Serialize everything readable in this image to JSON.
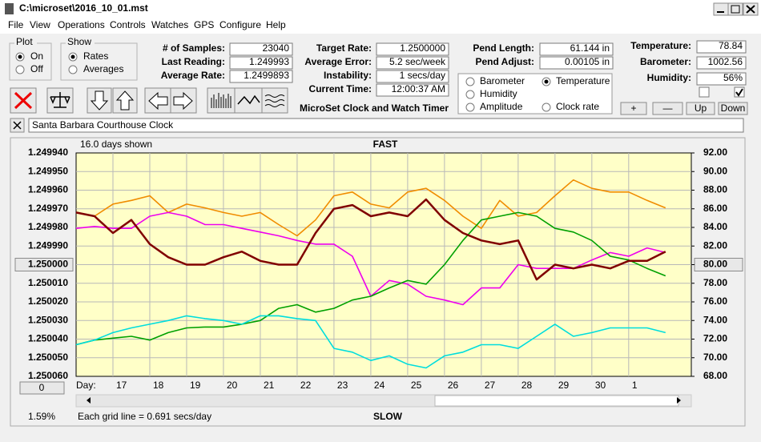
{
  "ui": {
    "title": "C:\\microset\\2016_10_01.mst",
    "menu": [
      "File",
      "View",
      "Operations",
      "Controls",
      "Watches",
      "GPS",
      "Configure",
      "Help"
    ],
    "plot_box": {
      "label": "Plot",
      "options": [
        "On",
        "Off"
      ]
    },
    "show_box": {
      "label": "Show",
      "options": [
        "Rates",
        "Averages"
      ]
    },
    "readouts": [
      {
        "label": "# of Samples:",
        "value": "23040"
      },
      {
        "label": "Last Reading:",
        "value": "1.249993"
      },
      {
        "label": "Average Rate:",
        "value": "1.2499893"
      },
      {
        "label": "Target Rate:",
        "value": "1.2500000"
      },
      {
        "label": "Average Error:",
        "value": "5.2 sec/week"
      },
      {
        "label": "Instability:",
        "value": "1 secs/day"
      },
      {
        "label": "Current Time:",
        "value": "12:00:37 AM"
      },
      {
        "label": "Pend Length:",
        "value": "61.144 in"
      },
      {
        "label": "Pend Adjust:",
        "value": "0.00105 in"
      }
    ],
    "environment": [
      {
        "label": "Temperature:",
        "value": "78.84"
      },
      {
        "label": "Barometer:",
        "value": "1002.56"
      },
      {
        "label": "Humidity:",
        "value": "56%"
      }
    ],
    "clock_rate_option": "Clock rate",
    "app_name": "MicroSet Clock and Watch Timer",
    "buttons": [
      "+",
      "—",
      "Up",
      "Down"
    ],
    "watch_name": "Santa Barbara Courthouse Clock",
    "zoom_button": "0",
    "percent": "1.59%"
  },
  "chart_data": {
    "type": "line",
    "subtitle": "16.0 days shown",
    "top_label": "FAST",
    "bottom_label": "SLOW",
    "x_label": "Day:",
    "footnote": "Each grid line = 0.691 secs/day",
    "grid": true,
    "xlim": [
      0,
      16.7
    ],
    "xticks": [
      {
        "value": 1,
        "label": "17"
      },
      {
        "value": 2,
        "label": "18"
      },
      {
        "value": 3,
        "label": "19"
      },
      {
        "value": 4,
        "label": "20"
      },
      {
        "value": 5,
        "label": "21"
      },
      {
        "value": 6,
        "label": "22"
      },
      {
        "value": 7,
        "label": "23"
      },
      {
        "value": 8,
        "label": "24"
      },
      {
        "value": 9,
        "label": "25"
      },
      {
        "value": 10,
        "label": "26"
      },
      {
        "value": 11,
        "label": "27"
      },
      {
        "value": 12,
        "label": "28"
      },
      {
        "value": 13,
        "label": "29"
      },
      {
        "value": 14,
        "label": "30"
      },
      {
        "value": 15,
        "label": "1"
      }
    ],
    "ylim": [
      1.25006,
      1.24994
    ],
    "yticks": [
      {
        "value": 1.24994,
        "label": "1.249940"
      },
      {
        "value": 1.24995,
        "label": "1.249950"
      },
      {
        "value": 1.24996,
        "label": "1.249960"
      },
      {
        "value": 1.24997,
        "label": "1.249970"
      },
      {
        "value": 1.24998,
        "label": "1.249980"
      },
      {
        "value": 1.24999,
        "label": "1.249990"
      },
      {
        "value": 1.25,
        "label": "1.250000"
      },
      {
        "value": 1.25001,
        "label": "1.250010"
      },
      {
        "value": 1.25002,
        "label": "1.250020"
      },
      {
        "value": 1.25003,
        "label": "1.250030"
      },
      {
        "value": 1.25004,
        "label": "1.250040"
      },
      {
        "value": 1.25005,
        "label": "1.250050"
      },
      {
        "value": 1.25006,
        "label": "1.250060"
      }
    ],
    "y2lim": [
      68,
      92
    ],
    "y2ticks": [
      {
        "value": 92,
        "label": "92.00"
      },
      {
        "value": 90,
        "label": "90.00"
      },
      {
        "value": 88,
        "label": "88.00"
      },
      {
        "value": 86,
        "label": "86.00"
      },
      {
        "value": 84,
        "label": "84.00"
      },
      {
        "value": 82,
        "label": "82.00"
      },
      {
        "value": 80,
        "label": "80.00"
      },
      {
        "value": 78,
        "label": "78.00"
      },
      {
        "value": 76,
        "label": "76.00"
      },
      {
        "value": 74,
        "label": "74.00"
      },
      {
        "value": 72,
        "label": "72.00"
      },
      {
        "value": 70,
        "label": "70.00"
      },
      {
        "value": 68,
        "label": "68.00"
      }
    ],
    "x": [
      0,
      0.5,
      1,
      1.5,
      2,
      2.5,
      3,
      3.5,
      4,
      4.5,
      5,
      5.5,
      6,
      6.5,
      7,
      7.5,
      8,
      8.5,
      9,
      9.5,
      10,
      10.5,
      11,
      11.5,
      12,
      12.5,
      13,
      13.5,
      14,
      14.5,
      15,
      15.5,
      16
    ],
    "series": [
      {
        "color": "#800000",
        "values": [
          1.249972,
          1.249974,
          1.249983,
          1.249976,
          1.249989,
          1.249996,
          1.25,
          1.25,
          1.249996,
          1.249993,
          1.249998,
          1.25,
          1.25,
          1.249983,
          1.24997,
          1.249968,
          1.249974,
          1.249972,
          1.249974,
          1.249965,
          1.249976,
          1.249983,
          1.249987,
          1.249989,
          1.249987,
          1.250008,
          1.25,
          1.250002,
          1.25,
          1.250002,
          1.249998,
          1.249998,
          1.249993
        ]
      },
      {
        "name": "Barometer",
        "color": "#f08c00",
        "axis": "y2",
        "values": [
          85.6,
          85.2,
          86.5,
          86.9,
          87.4,
          85.6,
          86.5,
          86.1,
          85.6,
          85.2,
          85.6,
          84.3,
          83.1,
          84.8,
          87.4,
          87.8,
          86.5,
          86.1,
          87.8,
          88.2,
          86.9,
          85.2,
          83.9,
          86.9,
          85.2,
          85.6,
          87.4,
          89.1,
          88.2,
          87.8,
          87.8,
          86.9,
          86.1
        ]
      },
      {
        "name": "Humidity",
        "color": "#ee00ee",
        "axis": "y2",
        "values": [
          83.9,
          84.1,
          83.9,
          83.9,
          85.2,
          85.6,
          85.2,
          84.3,
          84.3,
          83.9,
          83.5,
          83.1,
          82.6,
          82.2,
          82.2,
          80.9,
          76.6,
          78.3,
          77.9,
          76.6,
          76.2,
          75.7,
          77.5,
          77.5,
          80.0,
          79.6,
          79.6,
          79.6,
          80.5,
          81.3,
          80.9,
          81.8,
          81.3
        ]
      },
      {
        "name": "Temperature",
        "color": "#00a000",
        "axis": "y2",
        "values": [
          71.4,
          71.9,
          72.1,
          72.3,
          71.9,
          72.7,
          73.2,
          73.3,
          73.3,
          73.6,
          74.0,
          75.3,
          75.7,
          74.9,
          75.3,
          76.2,
          76.6,
          77.5,
          78.3,
          77.9,
          80.0,
          82.6,
          84.8,
          85.2,
          85.6,
          85.2,
          83.9,
          83.5,
          82.6,
          80.9,
          80.5,
          79.6,
          78.8
        ]
      },
      {
        "name": "Amplitude",
        "color": "#00dddd",
        "axis": "y2",
        "values": [
          71.4,
          71.9,
          72.7,
          73.2,
          73.6,
          74.0,
          74.5,
          74.2,
          74.0,
          73.6,
          74.5,
          74.5,
          74.2,
          74.0,
          71.0,
          70.6,
          69.7,
          70.2,
          69.3,
          68.9,
          70.2,
          70.6,
          71.4,
          71.4,
          71.0,
          72.3,
          73.6,
          72.3,
          72.7,
          73.2,
          73.2,
          73.2,
          72.7
        ]
      }
    ]
  }
}
